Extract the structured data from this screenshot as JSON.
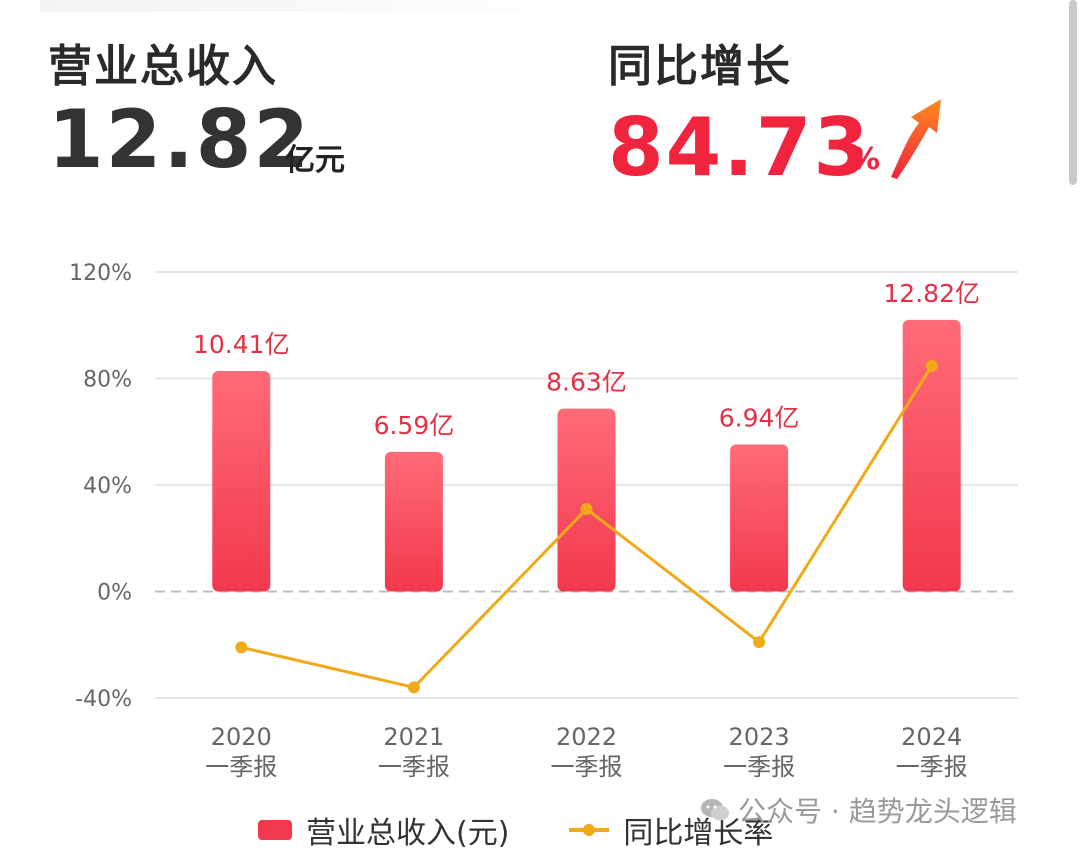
{
  "header": {
    "revenue_label": "营业总收入",
    "revenue_value": "12.82",
    "revenue_unit": "亿元",
    "yoy_label": "同比增长",
    "yoy_value": "84.73",
    "yoy_unit": "%"
  },
  "chart_data": {
    "type": "bar",
    "categories": [
      "2020\n一季报",
      "2021\n一季报",
      "2022\n一季报",
      "2023\n一季报",
      "2024\n一季报"
    ],
    "series": [
      {
        "name": "营业总收入(元)",
        "type": "bar",
        "values": [
          10.41,
          6.59,
          8.63,
          6.94,
          12.82
        ],
        "labels": [
          "10.41亿",
          "6.59亿",
          "8.63亿",
          "6.94亿",
          "12.82亿"
        ],
        "color": "#f2384d"
      },
      {
        "name": "同比增长率",
        "type": "line",
        "values": [
          -21,
          -36,
          31,
          -19,
          84.73
        ],
        "color": "#f1a91a"
      }
    ],
    "yaxis": {
      "ticks": [
        "120%",
        "80%",
        "40%",
        "0%",
        "-40%"
      ],
      "ylim": [
        -40,
        120
      ],
      "unit": "%"
    },
    "grid": true,
    "legend_position": "bottom"
  },
  "watermark": {
    "text": "公众号 · 趋势龙头逻辑"
  }
}
